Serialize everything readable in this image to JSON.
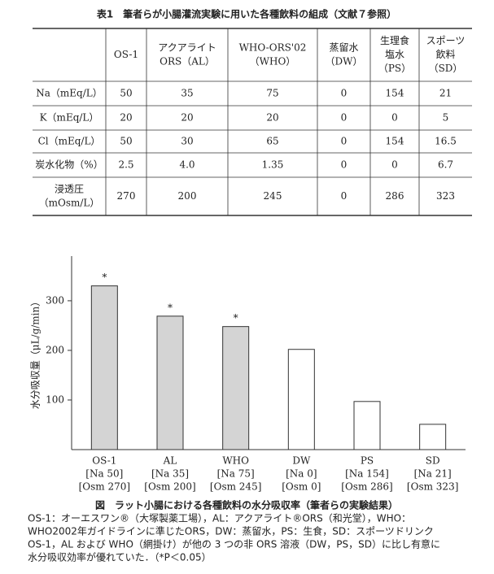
{
  "table": {
    "title": "表1　筆者らが小腸灌流実験に用いた各種飲料の組成（文献７参照）",
    "header": [
      [
        "OS-1"
      ],
      [
        "アクアライト",
        "ORS（AL）"
      ],
      [
        "WHO-ORS'02",
        "（WHO）"
      ],
      [
        "蒸留水",
        "（DW）"
      ],
      [
        "生理食",
        "塩水",
        "（PS）"
      ],
      [
        "スポーツ",
        "飲料",
        "（SD）"
      ]
    ],
    "rows": [
      {
        "label": [
          "Na（mEq/L）"
        ],
        "cells": [
          "50",
          "35",
          "75",
          "0",
          "154",
          "21"
        ]
      },
      {
        "label": [
          "K（mEq/L）"
        ],
        "cells": [
          "20",
          "20",
          "20",
          "0",
          "0",
          "5"
        ]
      },
      {
        "label": [
          "Cl（mEq/L）"
        ],
        "cells": [
          "50",
          "30",
          "65",
          "0",
          "154",
          "16.5"
        ]
      },
      {
        "label": [
          "炭水化物（%）"
        ],
        "cells": [
          "2.5",
          "4.0",
          "1.35",
          "0",
          "0",
          "6.7"
        ]
      },
      {
        "label": [
          "浸透圧",
          "（mOsm/L）"
        ],
        "cells": [
          "270",
          "200",
          "245",
          "0",
          "286",
          "323"
        ]
      }
    ]
  },
  "chart_data": {
    "type": "bar",
    "y_label": "水分吸収量（μL/g/min）",
    "categories": [
      [
        "OS-1",
        "[Na 50]",
        "[Osm 270]"
      ],
      [
        "AL",
        "[Na 35]",
        "[Osm 200]"
      ],
      [
        "WHO",
        "[Na 75]",
        "[Osm 245]"
      ],
      [
        "DW",
        "[Na 0]",
        "[Osm 0]"
      ],
      [
        "PS",
        "[Na 154]",
        "[Osm 286]"
      ],
      [
        "SD",
        "[Na 21]",
        "[Osm 323]"
      ]
    ],
    "values": [
      330,
      269,
      248,
      202,
      97,
      51
    ],
    "colors": [
      "#d4d4d4",
      "#d4d4d4",
      "#d4d4d4",
      "#ffffff",
      "#ffffff",
      "#ffffff"
    ],
    "significance": [
      "*",
      "*",
      "*",
      null,
      null,
      null
    ],
    "ylim": [
      0,
      390
    ],
    "yticks": [
      100,
      200,
      300
    ]
  },
  "caption": {
    "title": "図　ラット小腸における各種飲料の水分吸収率（筆者らの実験結果）",
    "notes": [
      "OS-1：オーエスワン®（大塚製薬工場），AL：アクアライト®ORS（和光堂），WHO：",
      "WHO2002年ガイドラインに準じたORS，DW：蒸留水，PS：生食，SD：スポーツドリンク",
      "OS-1，AL および WHO（網掛け）が他の 3 つの非 ORS 溶液（DW，PS，SD）に比し有意に",
      "水分吸収効率が優れていた．（*P＜0.05）"
    ]
  }
}
